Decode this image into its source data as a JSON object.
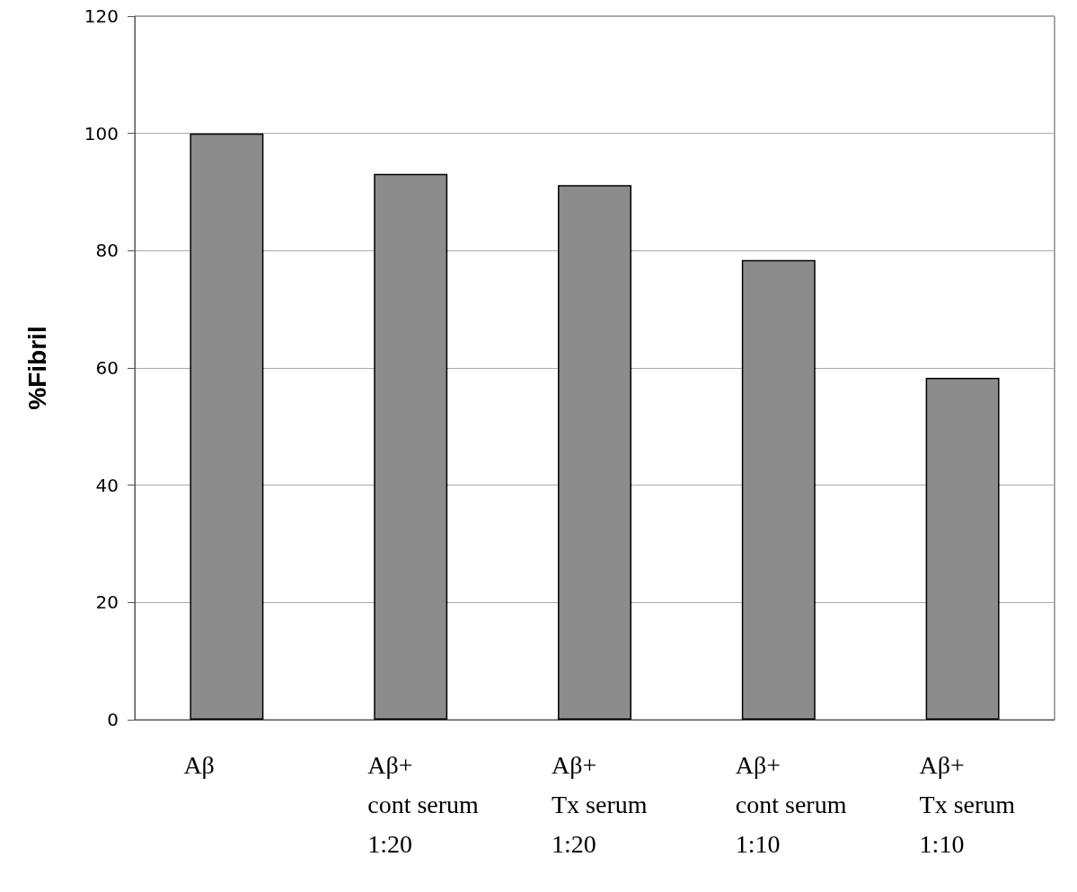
{
  "chart_data": {
    "type": "bar",
    "ylabel": "%Fibril",
    "categories": [
      "Aβ",
      "Aβ+\ncont serum\n1:20",
      "Aβ+\nTx serum\n1:20",
      "Aβ+\ncont serum\n1:10",
      "Aβ+\nTx serum\n1:10"
    ],
    "values": [
      100,
      93.1,
      91.2,
      78.4,
      58.3
    ],
    "color": "#8c8c8c",
    "ylim": [
      0,
      120
    ],
    "yticks": [
      0,
      20,
      40,
      60,
      80,
      100,
      120
    ],
    "grid": "y"
  }
}
